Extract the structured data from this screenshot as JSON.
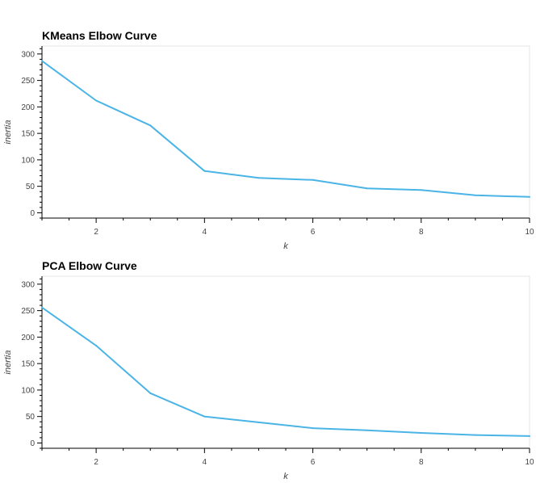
{
  "chart_data": [
    {
      "type": "line",
      "title": "KMeans Elbow Curve",
      "xlabel": "k",
      "ylabel": "inertia",
      "x": [
        1,
        2,
        3,
        4,
        5,
        6,
        7,
        8,
        9,
        10
      ],
      "series": [
        {
          "values": [
            287,
            212,
            165,
            79,
            66,
            62,
            46,
            43,
            33,
            30
          ],
          "color": "#4bb4e6"
        }
      ],
      "xlim": [
        1,
        10
      ],
      "ylim": [
        -10,
        315
      ],
      "xticks": [
        2,
        4,
        6,
        8,
        10
      ],
      "yticks": [
        0,
        50,
        100,
        150,
        200,
        250,
        300
      ],
      "grid": false
    },
    {
      "type": "line",
      "title": "PCA Elbow Curve",
      "xlabel": "k",
      "ylabel": "inertia",
      "x": [
        1,
        2,
        3,
        4,
        5,
        6,
        7,
        8,
        9,
        10
      ],
      "series": [
        {
          "values": [
            256,
            184,
            94,
            50,
            39,
            28,
            24,
            19,
            15,
            13
          ],
          "color": "#4bb4e6"
        }
      ],
      "xlim": [
        1,
        10
      ],
      "ylim": [
        -10,
        315
      ],
      "xticks": [
        2,
        4,
        6,
        8,
        10
      ],
      "yticks": [
        0,
        50,
        100,
        150,
        200,
        250,
        300
      ],
      "grid": false
    }
  ]
}
